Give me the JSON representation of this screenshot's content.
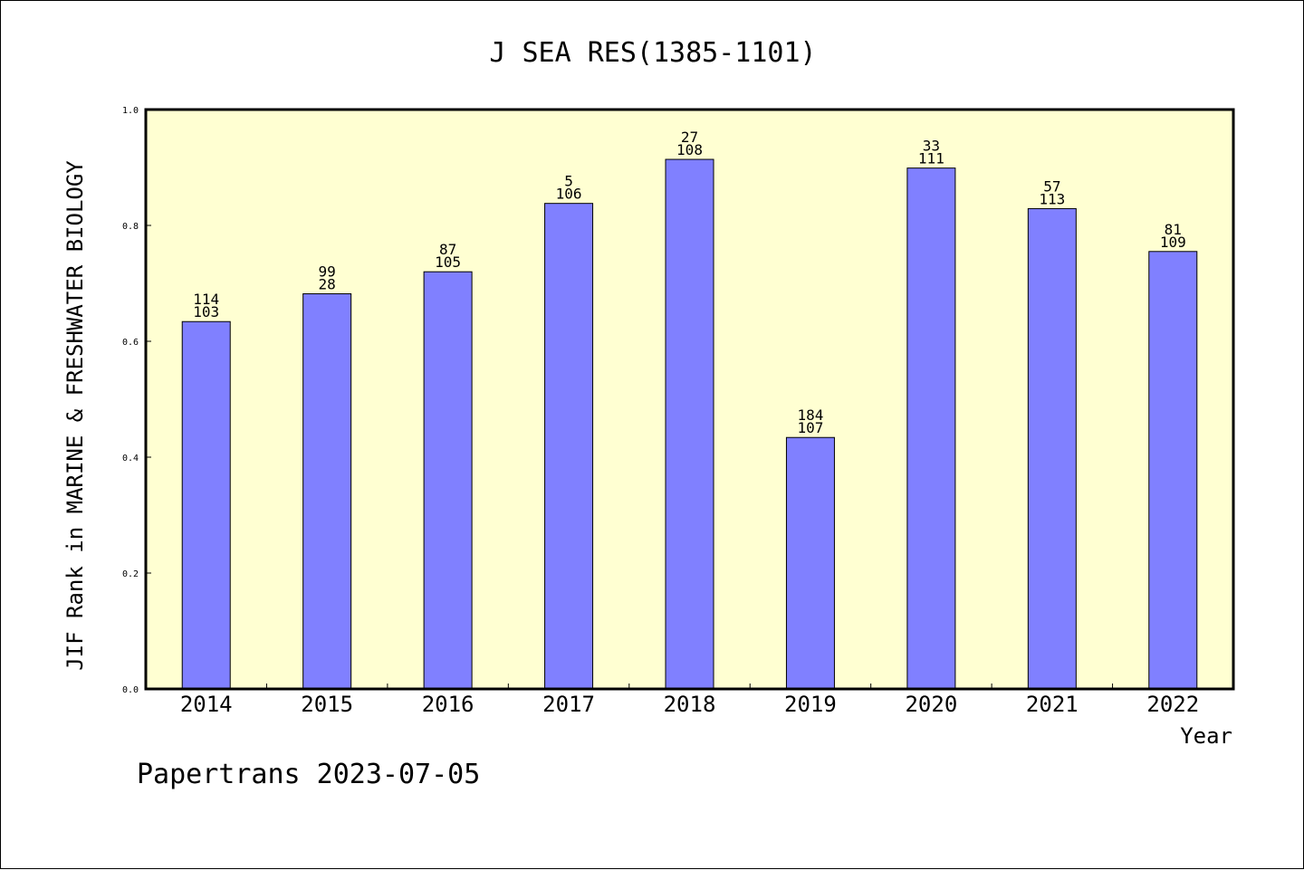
{
  "chart_data": {
    "type": "bar",
    "title": "J SEA RES(1385-1101)",
    "ylabel": "JIF Rank in MARINE & FRESHWATER BIOLOGY",
    "xlabel": "Year",
    "ylim": [
      0,
      1.0
    ],
    "yticks": [
      "0.0",
      "0.2",
      "0.4",
      "0.6",
      "0.8",
      "1.0"
    ],
    "grid": false,
    "categories": [
      "2014",
      "2015",
      "2016",
      "2017",
      "2018",
      "2019",
      "2020",
      "2021",
      "2022"
    ],
    "values": [
      0.634,
      0.682,
      0.72,
      0.838,
      0.914,
      0.434,
      0.899,
      0.829,
      0.755
    ],
    "labels_top": [
      "114",
      "99",
      "87",
      "5",
      "27",
      "184",
      "33",
      "57",
      "81"
    ],
    "labels_bottom": [
      "103",
      "28",
      "105",
      "106",
      "108",
      "107",
      "111",
      "113",
      "109"
    ],
    "colors": {
      "plot_background": "#ffffd2",
      "bar_fill": "#8080ff",
      "bar_stroke": "#000000"
    }
  },
  "footer": "Papertrans 2023-07-05"
}
